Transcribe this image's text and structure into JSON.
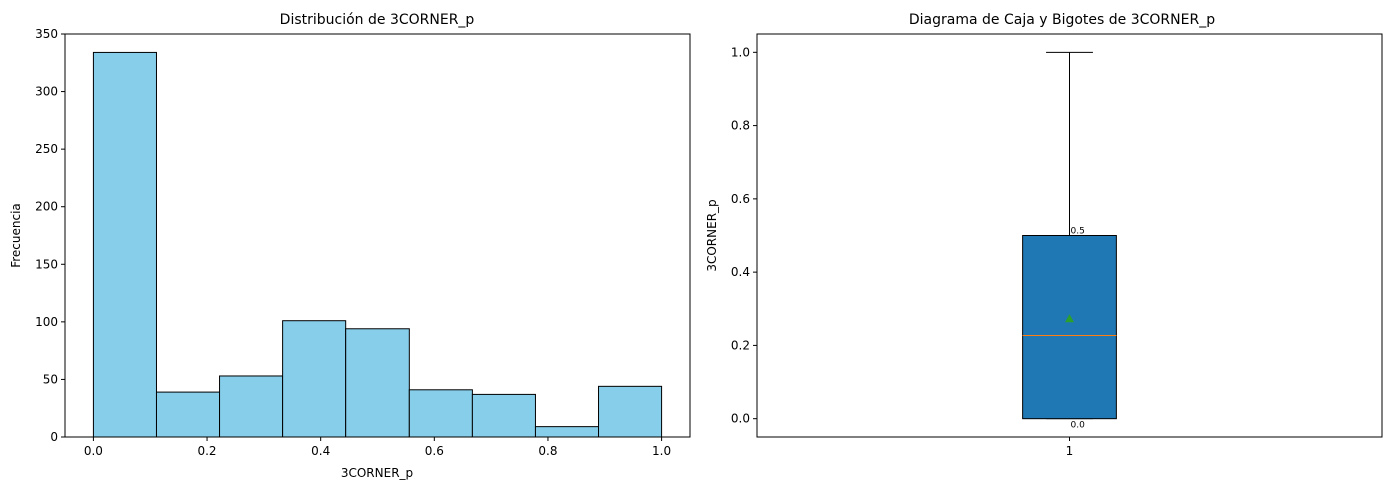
{
  "chart_data": [
    {
      "type": "bar",
      "subtype": "histogram",
      "title": "Distribución de 3CORNER_p",
      "xlabel": "3CORNER_p",
      "ylabel": "Frecuencia",
      "bin_edges": [
        0.0,
        0.111,
        0.222,
        0.333,
        0.444,
        0.556,
        0.667,
        0.778,
        0.889,
        1.0
      ],
      "values": [
        334,
        39,
        53,
        101,
        94,
        41,
        37,
        9,
        44
      ],
      "xlim": [
        -0.05,
        1.05
      ],
      "ylim": [
        0,
        350
      ],
      "xticks": [
        0.0,
        0.2,
        0.4,
        0.6,
        0.8,
        1.0
      ],
      "xtick_labels": [
        "0.0",
        "0.2",
        "0.4",
        "0.6",
        "0.8",
        "1.0"
      ],
      "yticks": [
        0,
        50,
        100,
        150,
        200,
        250,
        300,
        350
      ],
      "ytick_labels": [
        "0",
        "50",
        "100",
        "150",
        "200",
        "250",
        "300",
        "350"
      ],
      "bar_color": "#87ceeb",
      "edge_color": "#000000"
    },
    {
      "type": "box",
      "title": "Diagrama de Caja y Bigotes de 3CORNER_p",
      "xlabel": "",
      "ylabel": "3CORNER_p",
      "category": "1",
      "q1": 0.0,
      "median": 0.227,
      "q3": 0.5,
      "whisker_low": 0.0,
      "whisker_high": 1.0,
      "mean": 0.273,
      "annotations": [
        {
          "value": 0.5,
          "text": "0.5"
        },
        {
          "value": 0.0,
          "text": "0.0"
        }
      ],
      "ylim": [
        -0.05,
        1.05
      ],
      "xlim": [
        0.5,
        1.5
      ],
      "yticks": [
        0.0,
        0.2,
        0.4,
        0.6,
        0.8,
        1.0
      ],
      "ytick_labels": [
        "0.0",
        "0.2",
        "0.4",
        "0.6",
        "0.8",
        "1.0"
      ],
      "box_color": "#1f77b4",
      "median_color": "#ff7f0e",
      "mean_color": "#2ca02c"
    }
  ]
}
